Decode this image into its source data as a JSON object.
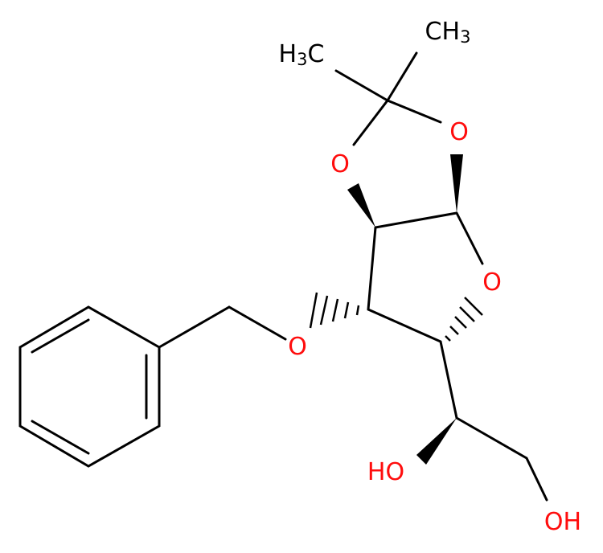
{
  "atoms": [
    {
      "label": "H3C"
    },
    {
      "label": "CH3"
    },
    {
      "label": "O"
    },
    {
      "label": "O"
    },
    {
      "label": "O"
    },
    {
      "label": "O"
    },
    {
      "label": "HO"
    },
    {
      "label": "OH"
    }
  ]
}
